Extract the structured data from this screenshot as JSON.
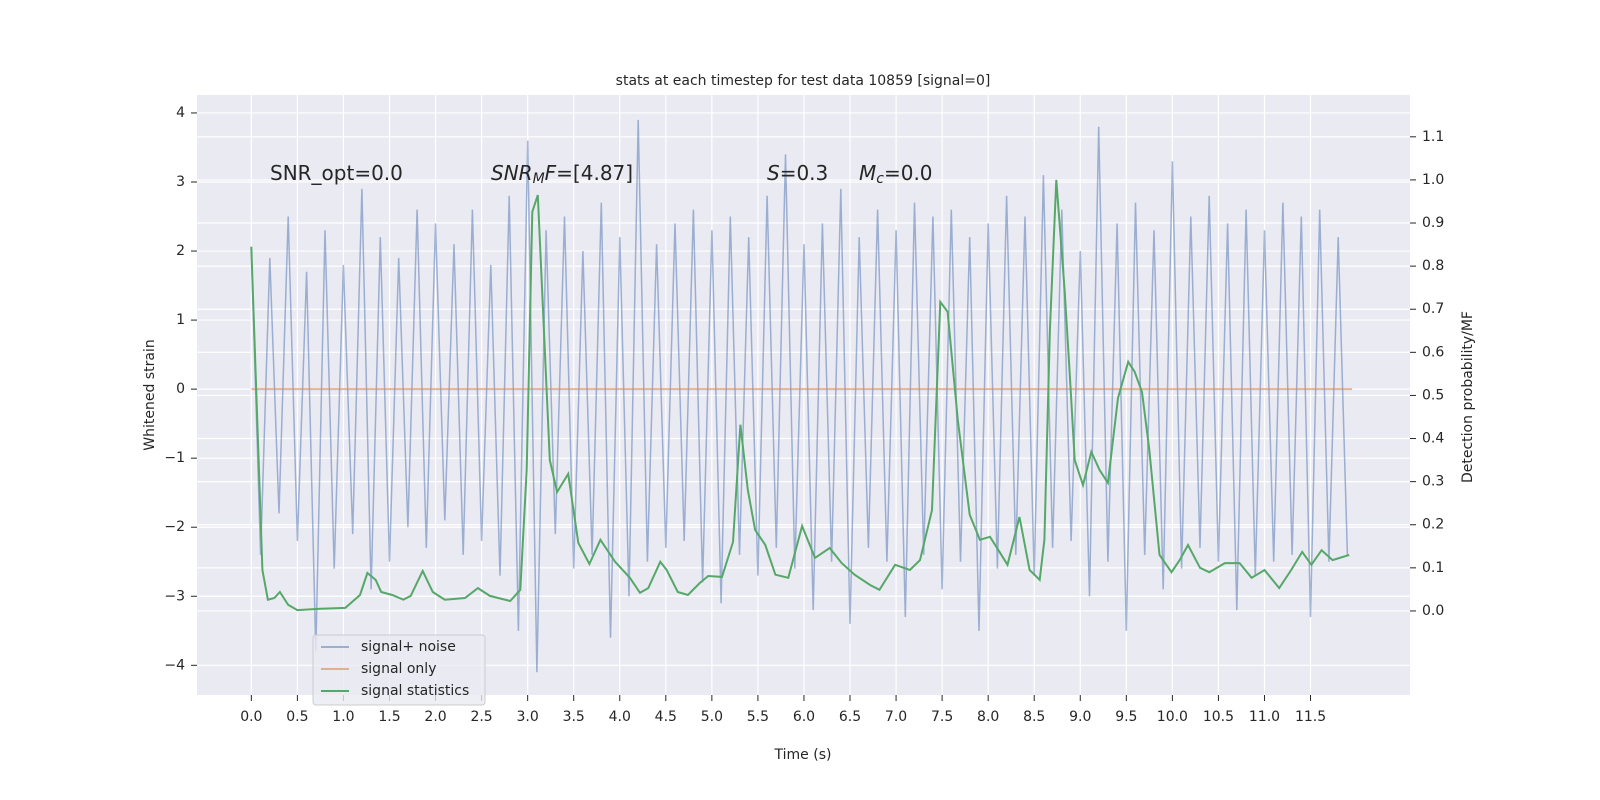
{
  "chart_data": {
    "type": "line",
    "title": "stats at each timestep for test data 10859 [signal=0]",
    "xlabel": "Time (s)",
    "ylabel": "Whitened strain",
    "y2label": "Detection probability/MF",
    "annotations": [
      [
        "SNR_opt=0.0"
      ],
      [
        "SNR",
        "M",
        "F",
        "=[4.87]"
      ],
      [
        "S",
        "=0.3"
      ],
      [
        "M",
        "c",
        "=0.0"
      ]
    ],
    "xlim": [
      -0.59,
      12.58
    ],
    "ylim": [
      -4.43,
      4.26
    ],
    "y2lim": [
      -0.195,
      1.197
    ],
    "xticks": [
      {
        "value": 0,
        "label": "0.0"
      },
      {
        "value": 0.5,
        "label": "0.5"
      },
      {
        "value": 1,
        "label": "1.0"
      },
      {
        "value": 1.5,
        "label": "1.5"
      },
      {
        "value": 2,
        "label": "2.0"
      },
      {
        "value": 2.5,
        "label": "2.5"
      },
      {
        "value": 3,
        "label": "3.0"
      },
      {
        "value": 3.5,
        "label": "3.5"
      },
      {
        "value": 4,
        "label": "4.0"
      },
      {
        "value": 4.5,
        "label": "4.5"
      },
      {
        "value": 5,
        "label": "5.0"
      },
      {
        "value": 5.5,
        "label": "5.5"
      },
      {
        "value": 6,
        "label": "6.0"
      },
      {
        "value": 6.5,
        "label": "6.5"
      },
      {
        "value": 7,
        "label": "7.0"
      },
      {
        "value": 7.5,
        "label": "7.5"
      },
      {
        "value": 8,
        "label": "8.0"
      },
      {
        "value": 8.5,
        "label": "8.5"
      },
      {
        "value": 9,
        "label": "9.0"
      },
      {
        "value": 9.5,
        "label": "9.5"
      },
      {
        "value": 10,
        "label": "10.0"
      },
      {
        "value": 10.5,
        "label": "10.5"
      },
      {
        "value": 11,
        "label": "11.0"
      },
      {
        "value": 11.5,
        "label": "11.5"
      }
    ],
    "yticks": [
      4,
      3,
      2,
      1,
      0,
      {
        "value": -1,
        "label": "−1"
      },
      {
        "value": -2,
        "label": "−2"
      },
      {
        "value": -3,
        "label": "−3"
      },
      {
        "value": -4,
        "label": "−4"
      }
    ],
    "y2ticks": [
      {
        "value": 0,
        "label": "0.0"
      },
      {
        "value": 0.1,
        "label": "0.1"
      },
      {
        "value": 0.2,
        "label": "0.2"
      },
      {
        "value": 0.3,
        "label": "0.3"
      },
      {
        "value": 0.4,
        "label": "0.4"
      },
      {
        "value": 0.5,
        "label": "0.5"
      },
      {
        "value": 0.6,
        "label": "0.6"
      },
      {
        "value": 0.7,
        "label": "0.7"
      },
      {
        "value": 0.8,
        "label": "0.8"
      },
      {
        "value": 0.9,
        "label": "0.9"
      },
      {
        "value": 1,
        "label": "1.0"
      },
      {
        "value": 1.1,
        "label": "1.1"
      }
    ],
    "grid": true,
    "legend": "lower left",
    "series": [
      {
        "name": "signal+ noise",
        "color": "#4c72b0",
        "opacity": 0.5,
        "x": [
          0.0,
          0.1,
          0.2,
          0.3,
          0.4,
          0.5,
          0.6,
          0.7,
          0.8,
          0.9,
          1.0,
          1.1,
          1.2,
          1.3,
          1.4,
          1.5,
          1.6,
          1.7,
          1.8,
          1.9,
          2.0,
          2.1,
          2.2,
          2.3,
          2.4,
          2.5,
          2.6,
          2.7,
          2.8,
          2.9,
          3.0,
          3.1,
          3.2,
          3.3,
          3.4,
          3.5,
          3.6,
          3.7,
          3.8,
          3.9,
          4.0,
          4.1,
          4.2,
          4.3,
          4.4,
          4.5,
          4.6,
          4.7,
          4.8,
          4.9,
          5.0,
          5.1,
          5.2,
          5.3,
          5.4,
          5.5,
          5.6,
          5.7,
          5.8,
          5.9,
          6.0,
          6.1,
          6.2,
          6.3,
          6.4,
          6.5,
          6.6,
          6.7,
          6.8,
          6.9,
          7.0,
          7.1,
          7.2,
          7.3,
          7.4,
          7.5,
          7.6,
          7.7,
          7.8,
          7.9,
          8.0,
          8.1,
          8.2,
          8.3,
          8.4,
          8.5,
          8.6,
          8.7,
          8.8,
          8.9,
          9.0,
          9.1,
          9.2,
          9.3,
          9.4,
          9.5,
          9.6,
          9.7,
          9.8,
          9.9,
          10.0,
          10.1,
          10.2,
          10.3,
          10.4,
          10.5,
          10.6,
          10.7,
          10.8,
          10.9,
          11.0,
          11.1,
          11.2,
          11.3,
          11.4,
          11.5,
          11.6,
          11.7,
          11.8,
          11.9
        ],
        "values": [
          2.05,
          -2.4,
          1.9,
          -1.8,
          2.5,
          -2.2,
          1.7,
          -3.8,
          2.3,
          -2.6,
          1.8,
          -2.1,
          2.9,
          -2.9,
          2.2,
          -2.5,
          1.9,
          -2.0,
          2.6,
          -2.3,
          2.4,
          -1.9,
          2.1,
          -2.4,
          2.6,
          -2.2,
          1.8,
          -2.7,
          2.8,
          -3.5,
          3.6,
          -4.1,
          2.3,
          -2.1,
          2.5,
          -2.6,
          2.0,
          -2.4,
          2.7,
          -3.6,
          2.2,
          -3.0,
          3.9,
          -2.5,
          2.1,
          -2.3,
          2.4,
          -2.2,
          2.6,
          -2.8,
          2.3,
          -3.1,
          2.5,
          -2.4,
          2.2,
          -2.7,
          2.8,
          -2.3,
          3.4,
          -2.6,
          2.1,
          -3.2,
          2.4,
          -2.5,
          2.9,
          -3.4,
          2.2,
          -2.3,
          2.6,
          -2.5,
          2.3,
          -3.3,
          2.7,
          -2.4,
          2.5,
          -2.9,
          2.6,
          -2.5,
          2.2,
          -3.5,
          2.4,
          -2.6,
          2.8,
          -2.4,
          2.5,
          -2.7,
          3.1,
          -2.3,
          2.6,
          -2.2,
          2.0,
          -3.0,
          3.8,
          -2.5,
          2.4,
          -3.5,
          2.7,
          -2.4,
          2.3,
          -2.9,
          3.3,
          -2.6,
          2.5,
          -2.3,
          2.8,
          -2.5,
          2.4,
          -3.2,
          2.6,
          -2.7,
          2.3,
          -2.5,
          2.7,
          -2.4,
          2.5,
          -3.3,
          2.6,
          -2.5,
          2.2,
          -2.4
        ]
      },
      {
        "name": "signal only",
        "color": "#dd8452",
        "opacity": 0.6,
        "x": [
          0.0,
          11.95
        ],
        "values": [
          0,
          0
        ]
      },
      {
        "name": "signal statistics",
        "color": "#55a868",
        "opacity": 1,
        "axis": "y2",
        "x": [
          0.0,
          0.12,
          0.18,
          0.25,
          0.31,
          0.4,
          0.5,
          0.75,
          1.02,
          1.18,
          1.26,
          1.35,
          1.41,
          1.53,
          1.65,
          1.73,
          1.86,
          1.97,
          2.1,
          2.32,
          2.46,
          2.59,
          2.81,
          2.92,
          2.99,
          3.05,
          3.11,
          3.24,
          3.32,
          3.44,
          3.55,
          3.67,
          3.79,
          3.95,
          4.11,
          4.22,
          4.31,
          4.44,
          4.51,
          4.63,
          4.74,
          4.87,
          4.96,
          5.11,
          5.23,
          5.31,
          5.39,
          5.47,
          5.58,
          5.69,
          5.83,
          5.98,
          6.12,
          6.28,
          6.41,
          6.55,
          6.72,
          6.82,
          6.99,
          7.15,
          7.26,
          7.39,
          7.48,
          7.56,
          7.67,
          7.8,
          7.91,
          8.02,
          8.13,
          8.21,
          8.34,
          8.45,
          8.56,
          8.61,
          8.67,
          8.74,
          8.83,
          8.89,
          8.94,
          9.03,
          9.12,
          9.21,
          9.3,
          9.41,
          9.52,
          9.59,
          9.67,
          9.75,
          9.86,
          9.99,
          10.08,
          10.17,
          10.3,
          10.4,
          10.57,
          10.73,
          10.86,
          11.0,
          11.16,
          11.29,
          11.41,
          11.51,
          11.62,
          11.74,
          11.92
        ],
        "values": [
          0.845,
          0.095,
          0.026,
          0.03,
          0.044,
          0.014,
          0.002,
          0.005,
          0.007,
          0.037,
          0.088,
          0.072,
          0.044,
          0.037,
          0.026,
          0.035,
          0.093,
          0.044,
          0.026,
          0.03,
          0.053,
          0.035,
          0.023,
          0.049,
          0.327,
          0.926,
          0.965,
          0.35,
          0.276,
          0.318,
          0.158,
          0.109,
          0.165,
          0.114,
          0.077,
          0.042,
          0.053,
          0.114,
          0.095,
          0.044,
          0.037,
          0.065,
          0.081,
          0.079,
          0.16,
          0.432,
          0.281,
          0.188,
          0.153,
          0.084,
          0.077,
          0.197,
          0.123,
          0.146,
          0.111,
          0.084,
          0.06,
          0.049,
          0.107,
          0.095,
          0.118,
          0.234,
          0.717,
          0.694,
          0.443,
          0.223,
          0.165,
          0.172,
          0.135,
          0.107,
          0.218,
          0.095,
          0.072,
          0.165,
          0.652,
          1.0,
          0.745,
          0.536,
          0.35,
          0.292,
          0.369,
          0.327,
          0.297,
          0.494,
          0.578,
          0.555,
          0.508,
          0.374,
          0.13,
          0.09,
          0.118,
          0.153,
          0.1,
          0.09,
          0.111,
          0.111,
          0.077,
          0.095,
          0.053,
          0.095,
          0.137,
          0.107,
          0.141,
          0.118,
          0.13
        ]
      }
    ]
  }
}
